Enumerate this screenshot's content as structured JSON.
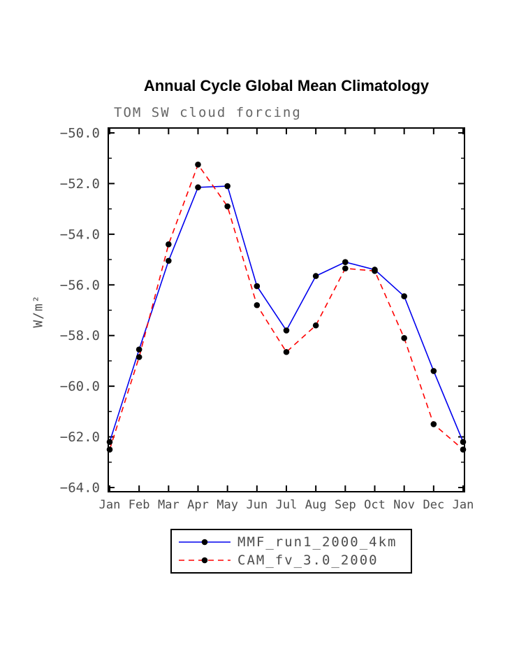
{
  "title": "Annual Cycle Global Mean Climatology",
  "chart_data": {
    "type": "line",
    "title": "Annual Cycle Global Mean Climatology",
    "subtitle": "TOM SW cloud forcing",
    "xlabel": "",
    "ylabel": "W/m²",
    "x_ticks": [
      "Jan",
      "Feb",
      "Mar",
      "Apr",
      "May",
      "Jun",
      "Jul",
      "Aug",
      "Sep",
      "Oct",
      "Nov",
      "Dec",
      "Jan"
    ],
    "ylim": [
      -64.0,
      -50.0
    ],
    "y_tick_step": 2.0,
    "y_minor_step": 1.0,
    "y_tick_labels": [
      "-50.0",
      "-52.0",
      "-54.0",
      "-56.0",
      "-58.0",
      "-60.0",
      "-62.0",
      "-64.0"
    ],
    "grid": false,
    "legend_position": "bottom",
    "axis_text_color": "#4d4d4d",
    "marker_color": "#000000",
    "series": [
      {
        "name": "MMF_run1_2000_4km",
        "color": "#0000ee",
        "style": "solid",
        "marker": "circle",
        "values": [
          -62.2,
          -58.55,
          -55.05,
          -52.15,
          -52.1,
          -56.05,
          -57.8,
          -55.65,
          -55.1,
          -55.4,
          -56.45,
          -59.4,
          -62.2
        ]
      },
      {
        "name": "CAM_fv_3.0_2000",
        "color": "#ff0000",
        "style": "dashed",
        "marker": "circle",
        "values": [
          -62.5,
          -58.85,
          -54.4,
          -51.25,
          -52.9,
          -56.8,
          -58.65,
          -57.6,
          -55.35,
          -55.45,
          -58.1,
          -61.5,
          -62.5
        ]
      }
    ]
  }
}
